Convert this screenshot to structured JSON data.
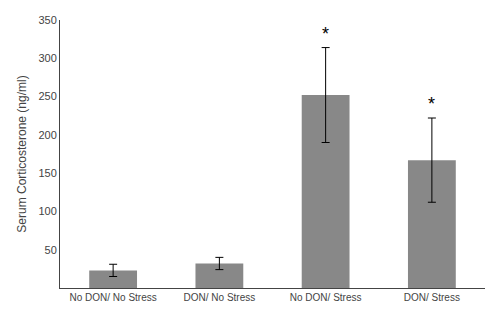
{
  "chart_data": {
    "type": "bar",
    "categories": [
      "No DON/ No Stress",
      "DON/ No Stress",
      "No DON/ Stress",
      "DON/ Stress"
    ],
    "values": [
      23,
      32,
      252,
      167
    ],
    "errors": [
      8,
      8,
      62,
      55
    ],
    "color": "#888888",
    "ylabel": "Serum Corticosterone (ng/ml)",
    "ylim": [
      0,
      350
    ],
    "yticks": [
      50,
      100,
      150,
      200,
      250,
      300,
      350
    ],
    "grid": false,
    "annotations": [
      {
        "text": "*",
        "category": "No DON/ Stress"
      },
      {
        "text": "*",
        "category": "DON/ Stress"
      }
    ]
  }
}
